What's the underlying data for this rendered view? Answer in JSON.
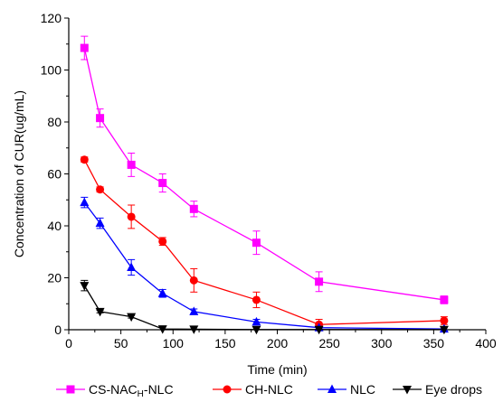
{
  "chart_data": {
    "type": "line",
    "title": "",
    "xlabel": "Time (min)",
    "ylabel": "Concentration of CUR(ug/mL)",
    "xlim": [
      0,
      400
    ],
    "ylim": [
      0,
      120
    ],
    "xticks": [
      0,
      50,
      100,
      150,
      200,
      250,
      300,
      350,
      400
    ],
    "yticks": [
      0,
      20,
      40,
      60,
      80,
      100,
      120
    ],
    "grid": false,
    "legend_position": "bottom",
    "series": [
      {
        "name": "CS-NAC",
        "name_subscript": "H",
        "name_suffix": "-NLC",
        "color": "#ff00ff",
        "marker": "square",
        "points": [
          {
            "x": 15,
            "y": 108.5,
            "err": 4.5
          },
          {
            "x": 30,
            "y": 81.5,
            "err": 3.5
          },
          {
            "x": 60,
            "y": 63.5,
            "err": 4.5
          },
          {
            "x": 90,
            "y": 56.5,
            "err": 3.5
          },
          {
            "x": 120,
            "y": 46.5,
            "err": 3.0
          },
          {
            "x": 180,
            "y": 33.5,
            "err": 4.5
          },
          {
            "x": 240,
            "y": 18.5,
            "err": 3.8
          },
          {
            "x": 360,
            "y": 11.5,
            "err": 1.5
          }
        ]
      },
      {
        "name": "CH-NLC",
        "color": "#ff0000",
        "marker": "circle",
        "points": [
          {
            "x": 15,
            "y": 65.5,
            "err": 1.0
          },
          {
            "x": 30,
            "y": 54.0,
            "err": 1.0
          },
          {
            "x": 60,
            "y": 43.5,
            "err": 4.5
          },
          {
            "x": 90,
            "y": 34.0,
            "err": 1.5
          },
          {
            "x": 120,
            "y": 19.0,
            "err": 4.5
          },
          {
            "x": 180,
            "y": 11.5,
            "err": 3.0
          },
          {
            "x": 240,
            "y": 2.0,
            "err": 2.0
          },
          {
            "x": 360,
            "y": 3.5,
            "err": 1.5
          }
        ]
      },
      {
        "name": "NLC",
        "color": "#0000ff",
        "marker": "triangle-up",
        "points": [
          {
            "x": 15,
            "y": 49.0,
            "err": 2.0
          },
          {
            "x": 30,
            "y": 41.0,
            "err": 2.0
          },
          {
            "x": 60,
            "y": 24.0,
            "err": 3.0
          },
          {
            "x": 90,
            "y": 14.0,
            "err": 1.5
          },
          {
            "x": 120,
            "y": 7.0,
            "err": 1.0
          },
          {
            "x": 180,
            "y": 3.0,
            "err": 1.0
          },
          {
            "x": 240,
            "y": 0.8,
            "err": 0.5
          },
          {
            "x": 360,
            "y": 0.3,
            "err": 0.3
          }
        ]
      },
      {
        "name": "Eye drops",
        "color": "#000000",
        "marker": "triangle-down",
        "points": [
          {
            "x": 15,
            "y": 17.0,
            "err": 2.0
          },
          {
            "x": 30,
            "y": 7.0,
            "err": 0.5
          },
          {
            "x": 60,
            "y": 5.0,
            "err": 0.5
          },
          {
            "x": 90,
            "y": 0.3,
            "err": 0.3
          },
          {
            "x": 120,
            "y": 0.2,
            "err": 0.2
          },
          {
            "x": 180,
            "y": 0.1,
            "err": 0.1
          },
          {
            "x": 240,
            "y": 0.1,
            "err": 0.1
          },
          {
            "x": 360,
            "y": 0.1,
            "err": 0.1
          }
        ]
      }
    ]
  }
}
